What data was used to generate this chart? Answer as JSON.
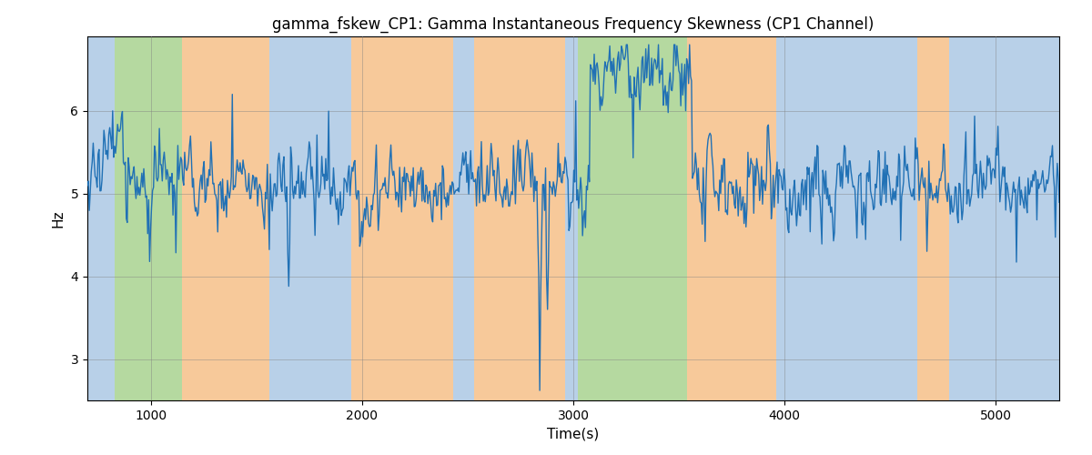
{
  "title": "gamma_fskew_CP1: Gamma Instantaneous Frequency Skewness (CP1 Channel)",
  "xlabel": "Time(s)",
  "ylabel": "Hz",
  "xlim": [
    700,
    5300
  ],
  "ylim": [
    2.5,
    6.9
  ],
  "line_color": "#2171b5",
  "line_width": 1.0,
  "background_regions": [
    {
      "xstart": 700,
      "xend": 830,
      "color": "#b8d0e8"
    },
    {
      "xstart": 830,
      "xend": 1150,
      "color": "#b5d9a0"
    },
    {
      "xstart": 1150,
      "xend": 1560,
      "color": "#f7c99a"
    },
    {
      "xstart": 1560,
      "xend": 1700,
      "color": "#b8d0e8"
    },
    {
      "xstart": 1700,
      "xend": 1950,
      "color": "#b8d0e8"
    },
    {
      "xstart": 1950,
      "xend": 2430,
      "color": "#f7c99a"
    },
    {
      "xstart": 2430,
      "xend": 2530,
      "color": "#b8d0e8"
    },
    {
      "xstart": 2530,
      "xend": 2960,
      "color": "#f7c99a"
    },
    {
      "xstart": 2960,
      "xend": 3020,
      "color": "#b8d0e8"
    },
    {
      "xstart": 3020,
      "xend": 3540,
      "color": "#b5d9a0"
    },
    {
      "xstart": 3540,
      "xend": 3960,
      "color": "#f7c99a"
    },
    {
      "xstart": 3960,
      "xend": 4630,
      "color": "#b8d0e8"
    },
    {
      "xstart": 4630,
      "xend": 4780,
      "color": "#f7c99a"
    },
    {
      "xstart": 4780,
      "xend": 5300,
      "color": "#b8d0e8"
    }
  ],
  "seed": 17,
  "n_points": 1000,
  "t_start": 700,
  "t_end": 5300,
  "base_value": 5.1,
  "title_fontsize": 12,
  "tick_labelsize": 10,
  "axis_label_fontsize": 11,
  "xticks": [
    1000,
    2000,
    3000,
    4000,
    5000
  ],
  "yticks": [
    3,
    4,
    5,
    6
  ]
}
